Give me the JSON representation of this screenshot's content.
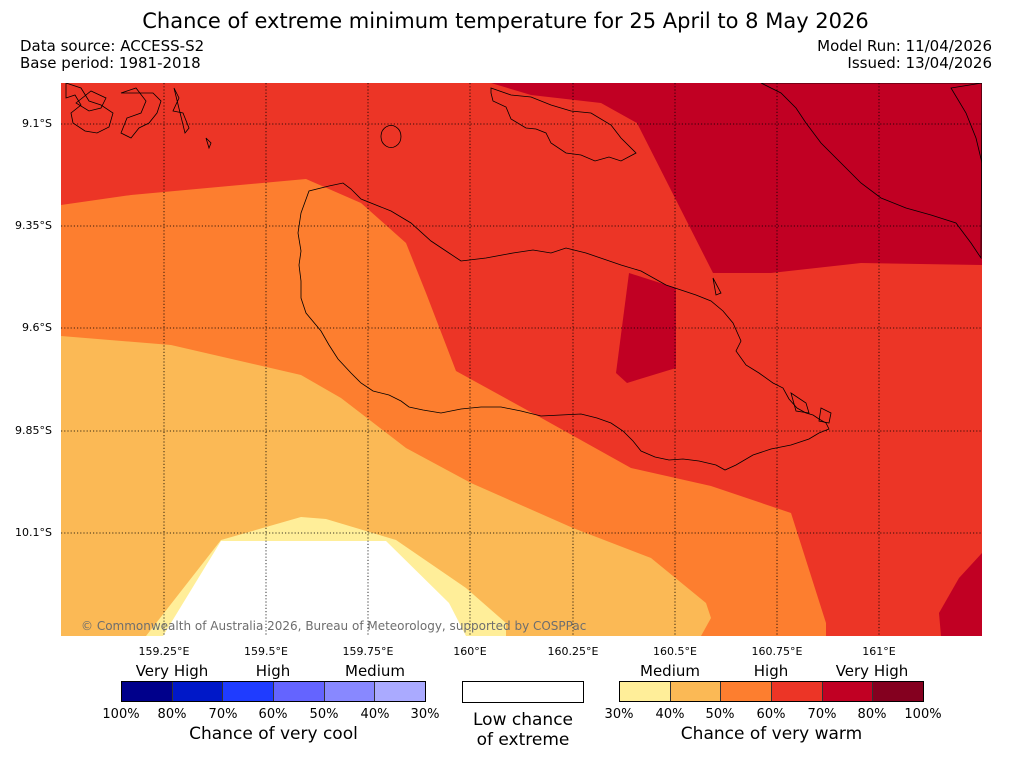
{
  "title": "Chance of extreme minimum temperature for 25 April to 8 May 2026",
  "data_source": "Data source: ACCESS-S2",
  "base_period": "Base period: 1981-2018",
  "model_run": "Model Run: 11/04/2026",
  "issued": "Issued: 13/04/2026",
  "lat_labels": [
    "9.1°S",
    "9.35°S",
    "9.6°S",
    "9.85°S",
    "10.1°S"
  ],
  "lon_labels": [
    "159.25°E",
    "159.5°E",
    "159.75°E",
    "160°E",
    "160.25°E",
    "160.5°E",
    "160.75°E",
    "161°E"
  ],
  "copyright": "© Commonwealth of Australia 2026, Bureau of Meteorology, supported by COSPPac",
  "cool_legend": {
    "headings": [
      "Very High",
      "High",
      "Medium"
    ],
    "colors": [
      "#00008b",
      "#0018c8",
      "#1f3cff",
      "#6464ff",
      "#8888ff",
      "#aaaaff"
    ],
    "ticks": [
      "100%",
      "80%",
      "70%",
      "60%",
      "50%",
      "40%",
      "30%"
    ],
    "title": "Chance of very cool"
  },
  "low_legend": {
    "line1": "Low chance",
    "line2": "of extreme"
  },
  "warm_legend": {
    "headings": [
      "Medium",
      "High",
      "Very High"
    ],
    "colors": [
      "#ffee99",
      "#fbb955",
      "#fd7e2f",
      "#ec3526",
      "#c10023",
      "#84001f"
    ],
    "ticks": [
      "30%",
      "40%",
      "50%",
      "60%",
      "70%",
      "80%",
      "100%"
    ],
    "title": "Chance of very warm"
  },
  "map_colors": {
    "c40_50": "#fbb955",
    "c50_60": "#fd7e2f",
    "c60_70": "#ec3526",
    "c70_80": "#c10023",
    "c30_40": "#ffee99",
    "low": "#ffffff"
  }
}
